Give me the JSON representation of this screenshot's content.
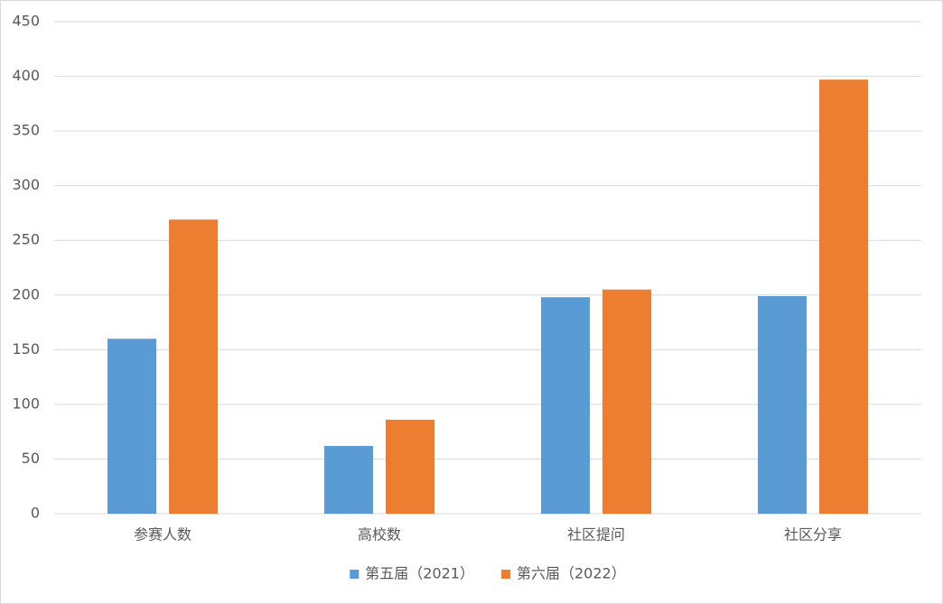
{
  "chart_data": {
    "type": "bar",
    "categories": [
      "参赛人数",
      "高校数",
      "社区提问",
      "社区分享"
    ],
    "series": [
      {
        "name": "第五届（2021）",
        "color": "#5b9bd5",
        "values": [
          160,
          62,
          198,
          199
        ]
      },
      {
        "name": "第六届（2022）",
        "color": "#ed7d31",
        "values": [
          269,
          86,
          205,
          397
        ]
      }
    ],
    "ylim": [
      0,
      450
    ],
    "yticks": [
      0,
      50,
      100,
      150,
      200,
      250,
      300,
      350,
      400,
      450
    ],
    "grid": true,
    "legend": "bottom"
  }
}
